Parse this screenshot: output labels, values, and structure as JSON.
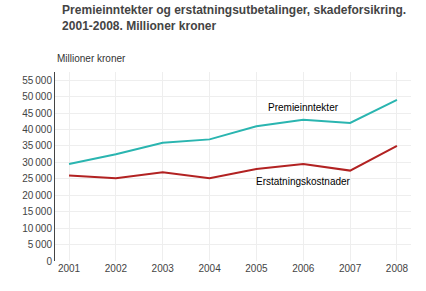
{
  "chart_data": {
    "type": "line",
    "title": "Premieinntekter og erstatningsutbetalinger, skadeforsikring.\n2001-2008. Millioner kroner",
    "ylabel": "Millioner kroner",
    "x": [
      2001,
      2002,
      2003,
      2004,
      2005,
      2006,
      2007,
      2008
    ],
    "series": [
      {
        "name": "Premieinntekter",
        "color": "#2ab5b0",
        "values": [
          29500,
          32500,
          36000,
          37000,
          41000,
          43000,
          42000,
          49000
        ]
      },
      {
        "name": "Erstatningskostnader",
        "color": "#b22222",
        "values": [
          26000,
          25200,
          27000,
          25200,
          28000,
          29500,
          27500,
          35000
        ]
      }
    ],
    "xlim": [
      2000.7,
      2008.3
    ],
    "xticks": [
      2001,
      2002,
      2003,
      2004,
      2005,
      2006,
      2007,
      2008
    ],
    "ylim": [
      0,
      57500
    ],
    "yticks": [
      0,
      {
        "value": 5000,
        "label": "5 000"
      },
      {
        "value": 10000,
        "label": "10 000"
      },
      {
        "value": 15000,
        "label": "15 000"
      },
      {
        "value": 20000,
        "label": "20 000"
      },
      {
        "value": 25000,
        "label": "25 000"
      },
      {
        "value": 30000,
        "label": "30 000"
      },
      {
        "value": 35000,
        "label": "35 000"
      },
      {
        "value": 40000,
        "label": "40 000"
      },
      {
        "value": 45000,
        "label": "45 000"
      },
      {
        "value": 50000,
        "label": "50 000"
      },
      {
        "value": 55000,
        "label": "55 000"
      }
    ],
    "grid": true
  }
}
